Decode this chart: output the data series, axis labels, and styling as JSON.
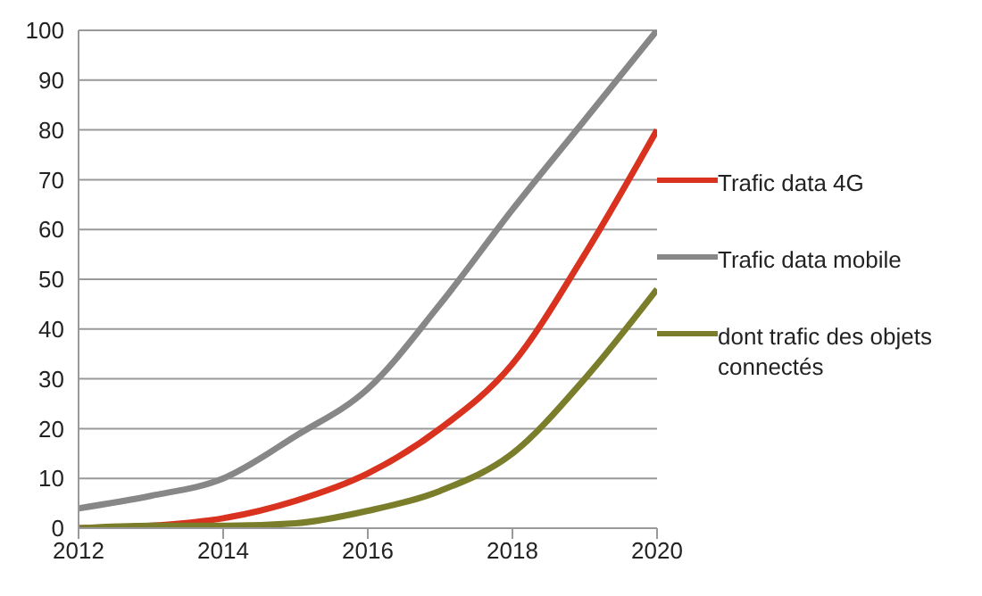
{
  "chart_data": {
    "type": "line",
    "x": [
      2012,
      2013,
      2014,
      2015,
      2016,
      2017,
      2018,
      2019,
      2020
    ],
    "series": [
      {
        "name": "Trafic data mobile",
        "color": "#878787",
        "values": [
          4,
          6.5,
          10,
          18.5,
          28,
          45,
          64,
          82,
          100
        ]
      },
      {
        "name": "Trafic data 4G",
        "color": "#d9321f",
        "values": [
          0,
          0.5,
          2,
          5.5,
          11,
          20,
          33,
          55,
          80
        ]
      },
      {
        "name": "dont trafic des objets connectés",
        "color": "#7a7d2a",
        "values": [
          0,
          0.5,
          0.5,
          1,
          3.5,
          7.5,
          15,
          30,
          48
        ]
      }
    ],
    "xlim": [
      2012,
      2020
    ],
    "xticks": [
      2012,
      2014,
      2016,
      2018,
      2020
    ],
    "ylim": [
      0,
      100
    ],
    "yticks": [
      0,
      10,
      20,
      30,
      40,
      50,
      60,
      70,
      80,
      90,
      100
    ],
    "grid": "y",
    "legend": "right",
    "marker": "none",
    "line_style": "solid"
  }
}
